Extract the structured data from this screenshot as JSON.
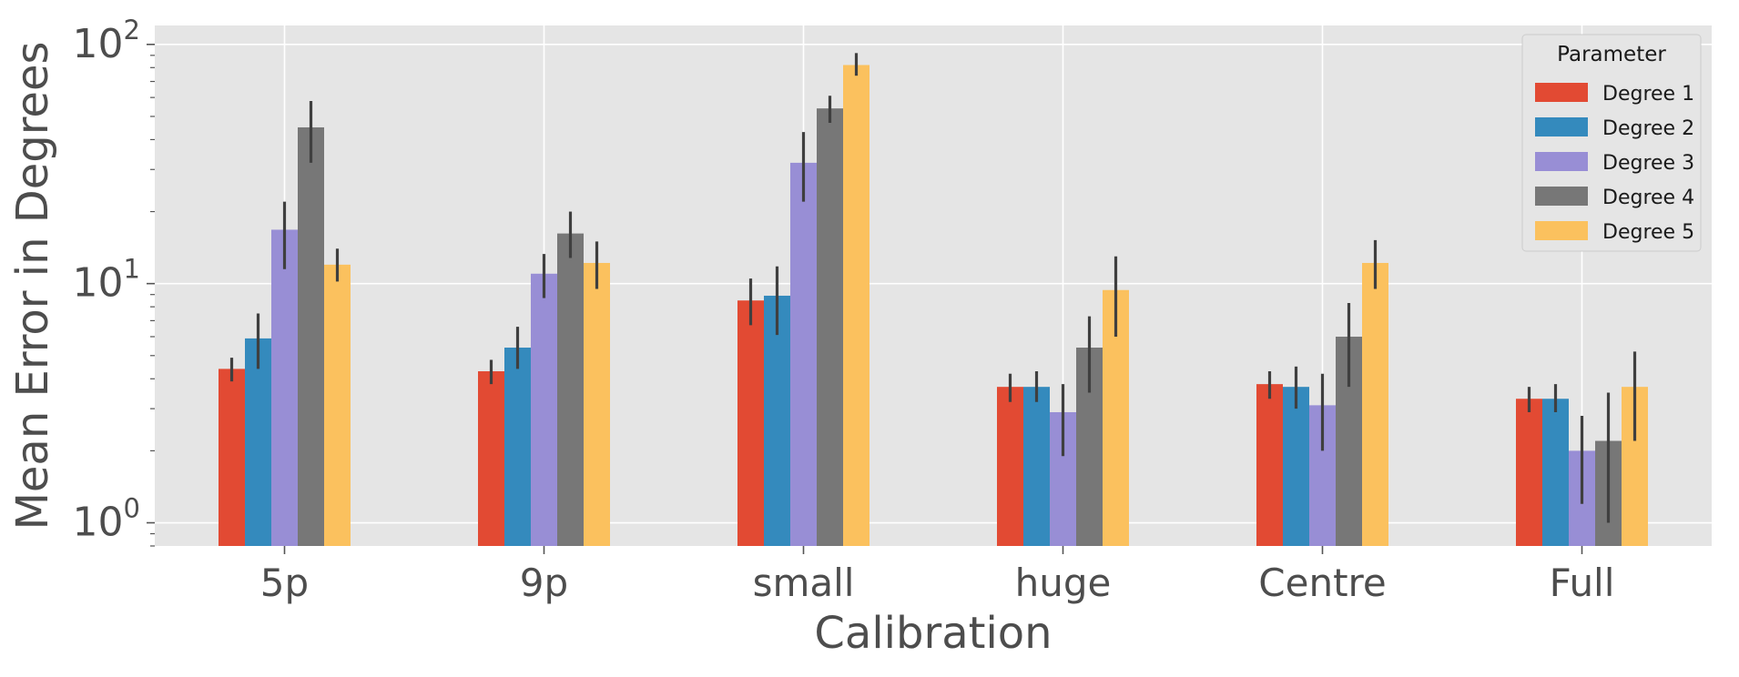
{
  "chart_data": {
    "type": "bar",
    "yscale": "log",
    "xlabel": "Calibration",
    "ylabel": "Mean Error in Degrees",
    "ylim": [
      0.8,
      120
    ],
    "y_ticks": [
      {
        "value": 1,
        "base": "10",
        "exp": "0"
      },
      {
        "value": 10,
        "base": "10",
        "exp": "1"
      },
      {
        "value": 100,
        "base": "10",
        "exp": "2"
      }
    ],
    "categories": [
      "5p",
      "9p",
      "small",
      "huge",
      "Centre",
      "Full"
    ],
    "legend": {
      "title": "Parameter",
      "position": "top-right"
    },
    "colors": [
      "#E24A33",
      "#348ABD",
      "#988ED5",
      "#777777",
      "#FBC15E"
    ],
    "series": [
      {
        "name": "Degree 1",
        "values": [
          4.4,
          4.3,
          8.5,
          3.7,
          3.8,
          3.3
        ],
        "err_low": [
          3.9,
          3.8,
          6.7,
          3.2,
          3.3,
          2.9
        ],
        "err_high": [
          4.9,
          4.8,
          10.5,
          4.2,
          4.3,
          3.7
        ]
      },
      {
        "name": "Degree 2",
        "values": [
          5.9,
          5.4,
          8.9,
          3.7,
          3.7,
          3.3
        ],
        "err_low": [
          4.4,
          4.4,
          6.1,
          3.2,
          3.0,
          2.9
        ],
        "err_high": [
          7.5,
          6.6,
          11.8,
          4.3,
          4.5,
          3.8
        ]
      },
      {
        "name": "Degree 3",
        "values": [
          16.8,
          11.0,
          32.0,
          2.9,
          3.1,
          2.0
        ],
        "err_low": [
          11.5,
          8.7,
          22.0,
          1.9,
          2.0,
          1.2
        ],
        "err_high": [
          22.0,
          13.3,
          43.0,
          3.8,
          4.2,
          2.8
        ]
      },
      {
        "name": "Degree 4",
        "values": [
          45.0,
          16.2,
          54.0,
          5.4,
          6.0,
          2.2
        ],
        "err_low": [
          32.0,
          12.8,
          47.0,
          3.5,
          3.7,
          1.0
        ],
        "err_high": [
          58.0,
          20.0,
          61.0,
          7.3,
          8.3,
          3.5
        ]
      },
      {
        "name": "Degree 5",
        "values": [
          12.0,
          12.2,
          82.0,
          9.4,
          12.2,
          3.7
        ],
        "err_low": [
          10.2,
          9.5,
          74.0,
          6.0,
          9.5,
          2.2
        ],
        "err_high": [
          14.0,
          15.0,
          92.0,
          13.0,
          15.2,
          5.2
        ]
      }
    ]
  }
}
